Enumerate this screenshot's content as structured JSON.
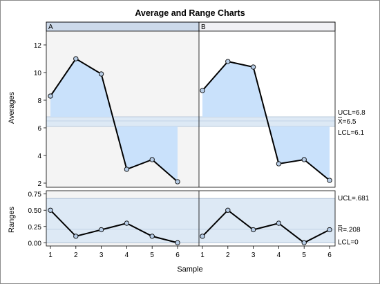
{
  "chart_data": {
    "type": "line",
    "title": "Average and Range Charts",
    "xlabel": "Sample",
    "x": [
      1,
      2,
      3,
      4,
      5,
      6
    ],
    "x_ticks": [
      "1",
      "2",
      "3",
      "4",
      "5",
      "6"
    ],
    "panels": [
      "A",
      "B"
    ],
    "averages": {
      "ylabel": "Averages",
      "ylim": [
        1.7,
        13.0
      ],
      "y_ticks": [
        2,
        4,
        6,
        8,
        10,
        12
      ],
      "ucl": 6.8,
      "center": 6.5,
      "lcl": 6.1,
      "ucl_label": "UCL=6.8",
      "center_label": "X=6.5",
      "lcl_label": "LCL=6.1",
      "series": [
        {
          "values": [
            8.3,
            11.0,
            9.9,
            3.0,
            3.7,
            2.1
          ]
        },
        {
          "values": [
            8.7,
            10.8,
            10.4,
            3.4,
            3.7,
            2.2
          ]
        }
      ]
    },
    "ranges": {
      "ylabel": "Ranges",
      "ylim": [
        -0.05,
        0.8
      ],
      "y_ticks": [
        "0.00",
        "0.25",
        "0.50",
        "0.75"
      ],
      "ucl": 0.681,
      "center": 0.208,
      "lcl": 0,
      "ucl_label": "UCL=.681",
      "center_label": "R=.208",
      "lcl_label": "LCL=0",
      "series": [
        {
          "values": [
            0.5,
            0.1,
            0.2,
            0.3,
            0.1,
            0.0
          ]
        },
        {
          "values": [
            0.1,
            0.5,
            0.2,
            0.3,
            0.0,
            0.2
          ]
        }
      ]
    },
    "colors": {
      "series_line": "#000000",
      "marker_fill": "#b8cde6",
      "region_fill": "#c9e1fb",
      "limits_band": "#dde9f5",
      "panel_a_bg": "#f4f4f4",
      "panel_b_bg": "#ffffff",
      "header_a": "#ccd9ea",
      "header_b": "#f1f1f5"
    }
  }
}
